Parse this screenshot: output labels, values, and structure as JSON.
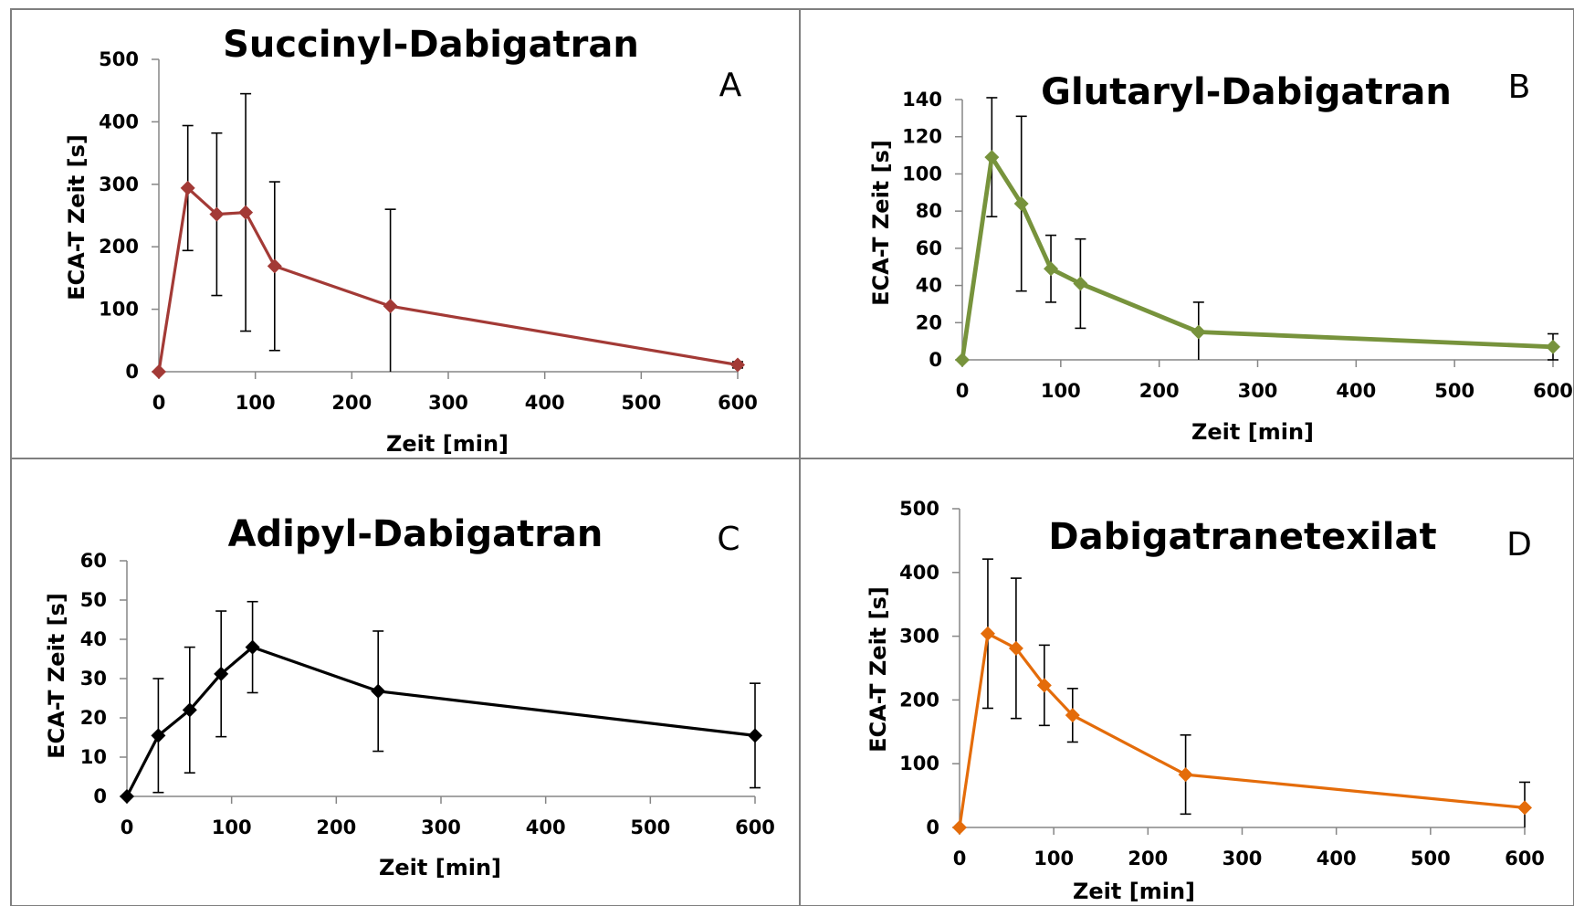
{
  "chart_data": [
    {
      "type": "line",
      "panel": "A",
      "title": "Succinyl-Dabigatran",
      "xlabel": "Zeit [min]",
      "ylabel": "ECA-T Zeit [s]",
      "xlim": [
        0,
        600
      ],
      "ylim": [
        0,
        500
      ],
      "xticks": [
        0,
        100,
        200,
        300,
        400,
        500,
        600
      ],
      "yticks": [
        0,
        100,
        200,
        300,
        400,
        500
      ],
      "color": "#a33a36",
      "marker": "diamond",
      "x": [
        0,
        30,
        60,
        90,
        120,
        240,
        600
      ],
      "y": [
        0,
        294,
        252,
        255,
        169,
        105,
        11
      ],
      "error": [
        0,
        100,
        130,
        190,
        135,
        155,
        5
      ]
    },
    {
      "type": "line",
      "panel": "B",
      "title": "Glutaryl-Dabigatran",
      "xlabel": "Zeit [min]",
      "ylabel": "ECA-T Zeit [s]",
      "xlim": [
        0,
        600
      ],
      "ylim": [
        0,
        140
      ],
      "xticks": [
        0,
        100,
        200,
        300,
        400,
        500,
        600
      ],
      "yticks": [
        0,
        20,
        40,
        60,
        80,
        100,
        120,
        140
      ],
      "color": "#77933c",
      "marker": "diamond",
      "x": [
        0,
        30,
        60,
        90,
        120,
        240,
        600
      ],
      "y": [
        0,
        109,
        84,
        49,
        41,
        15,
        7
      ],
      "error": [
        0,
        32,
        47,
        18,
        24,
        16,
        7
      ]
    },
    {
      "type": "line",
      "panel": "C",
      "title": "Adipyl-Dabigatran",
      "xlabel": "Zeit [min]",
      "ylabel": "ECA-T Zeit [s]",
      "xlim": [
        0,
        600
      ],
      "ylim": [
        0,
        60
      ],
      "xticks": [
        0,
        100,
        200,
        300,
        400,
        500,
        600
      ],
      "yticks": [
        0,
        10,
        20,
        30,
        40,
        50,
        60
      ],
      "color": "#000000",
      "marker": "diamond",
      "x": [
        0,
        30,
        60,
        90,
        120,
        240,
        600
      ],
      "y": [
        0,
        15.5,
        22,
        31.2,
        38,
        26.8,
        15.5
      ],
      "error": [
        0,
        14.5,
        16,
        16,
        11.6,
        15.3,
        13.3
      ]
    },
    {
      "type": "line",
      "panel": "D",
      "title": "Dabigatranetexilat",
      "xlabel": "Zeit [min]",
      "ylabel": "ECA-T Zeit [s]",
      "xlim": [
        0,
        600
      ],
      "ylim": [
        0,
        500
      ],
      "xticks": [
        0,
        100,
        200,
        300,
        400,
        500,
        600
      ],
      "yticks": [
        0,
        100,
        200,
        300,
        400,
        500
      ],
      "color": "#e46c0a",
      "marker": "diamond",
      "x": [
        0,
        30,
        60,
        90,
        120,
        240,
        600
      ],
      "y": [
        0,
        304,
        281,
        223,
        176,
        83,
        31
      ],
      "error": [
        0,
        117,
        110,
        63,
        42,
        62,
        40
      ]
    }
  ]
}
